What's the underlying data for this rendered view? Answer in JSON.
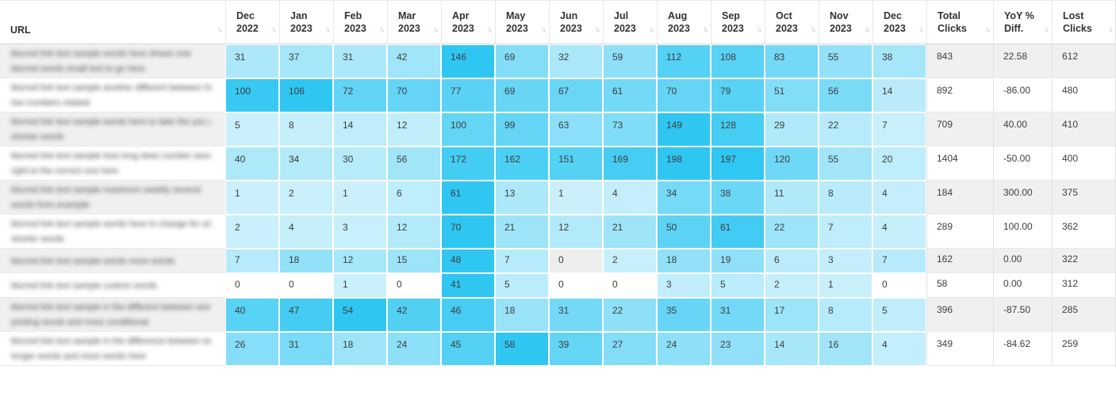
{
  "table": {
    "sort_icon": "↑↓",
    "columns": {
      "url_label": "URL",
      "months": [
        {
          "month": "Dec",
          "year": "2022"
        },
        {
          "month": "Jan",
          "year": "2023"
        },
        {
          "month": "Feb",
          "year": "2023"
        },
        {
          "month": "Mar",
          "year": "2023"
        },
        {
          "month": "Apr",
          "year": "2023"
        },
        {
          "month": "May",
          "year": "2023"
        },
        {
          "month": "Jun",
          "year": "2023"
        },
        {
          "month": "Jul",
          "year": "2023"
        },
        {
          "month": "Aug",
          "year": "2023"
        },
        {
          "month": "Sep",
          "year": "2023"
        },
        {
          "month": "Oct",
          "year": "2023"
        },
        {
          "month": "Nov",
          "year": "2023"
        },
        {
          "month": "Dec",
          "year": "2023"
        }
      ],
      "summary": [
        {
          "line1": "Total",
          "line2": "Clicks"
        },
        {
          "line1": "YoY %",
          "line2": "Diff."
        },
        {
          "line1": "Lost",
          "line2": "Clicks"
        }
      ]
    },
    "heatmap_colors": {
      "min": "#cef1fc",
      "max": "#2fc7f2"
    },
    "rows": [
      {
        "url_redacted_lines": [
          "blurred link text sample words here shown one",
          "blurred words small text to go here"
        ],
        "monthly": [
          31,
          37,
          31,
          42,
          146,
          69,
          32,
          59,
          112,
          108,
          83,
          55,
          38
        ],
        "total": "843",
        "yoy": "22.58",
        "lost": "612"
      },
      {
        "url_redacted_lines": [
          "blurred link text sample another different between high and",
          "low numbers related"
        ],
        "monthly": [
          100,
          106,
          72,
          70,
          77,
          69,
          67,
          61,
          70,
          79,
          51,
          56,
          14
        ],
        "total": "892",
        "yoy": "-86.00",
        "lost": "480"
      },
      {
        "url_redacted_lines": [
          "blurred link text sample words here to take the you and for",
          "shorter words"
        ],
        "monthly": [
          5,
          8,
          14,
          12,
          100,
          99,
          63,
          73,
          149,
          128,
          29,
          22,
          7
        ],
        "total": "709",
        "yoy": "40.00",
        "lost": "410"
      },
      {
        "url_redacted_lines": [
          "blurred link text sample how long does number words",
          "right to the correct one here"
        ],
        "monthly": [
          40,
          34,
          30,
          56,
          172,
          162,
          151,
          169,
          198,
          197,
          120,
          55,
          20
        ],
        "total": "1404",
        "yoy": "-50.00",
        "lost": "400"
      },
      {
        "url_redacted_lines": [
          "blurred link text sample maximum weekly several",
          "words from example"
        ],
        "monthly": [
          1,
          2,
          1,
          6,
          61,
          13,
          1,
          4,
          34,
          38,
          11,
          8,
          4
        ],
        "total": "184",
        "yoy": "300.00",
        "lost": "375"
      },
      {
        "url_redacted_lines": [
          "blurred link text sample words here to change for and the",
          "shorter words"
        ],
        "monthly": [
          2,
          4,
          3,
          12,
          70,
          21,
          12,
          21,
          50,
          61,
          22,
          7,
          4
        ],
        "total": "289",
        "yoy": "100.00",
        "lost": "362"
      },
      {
        "url_redacted_lines": [
          "blurred link text sample words more words"
        ],
        "monthly": [
          7,
          18,
          12,
          15,
          48,
          7,
          0,
          2,
          18,
          19,
          6,
          3,
          7
        ],
        "total": "162",
        "yoy": "0.00",
        "lost": "322"
      },
      {
        "url_redacted_lines": [
          "blurred link text sample custom words"
        ],
        "monthly": [
          0,
          0,
          1,
          0,
          41,
          5,
          0,
          0,
          3,
          5,
          2,
          1,
          0
        ],
        "total": "58",
        "yoy": "0.00",
        "lost": "312"
      },
      {
        "url_redacted_lines": [
          "blurred link text sample in the different between words",
          "posting words and more conditional"
        ],
        "monthly": [
          40,
          47,
          54,
          42,
          46,
          18,
          31,
          22,
          35,
          31,
          17,
          8,
          5
        ],
        "total": "396",
        "yoy": "-87.50",
        "lost": "285"
      },
      {
        "url_redacted_lines": [
          "blurred link text sample in the difference between words",
          "longer words and more words here"
        ],
        "monthly": [
          26,
          31,
          18,
          24,
          45,
          58,
          39,
          27,
          24,
          23,
          14,
          16,
          4
        ],
        "total": "349",
        "yoy": "-84.62",
        "lost": "259"
      }
    ]
  }
}
